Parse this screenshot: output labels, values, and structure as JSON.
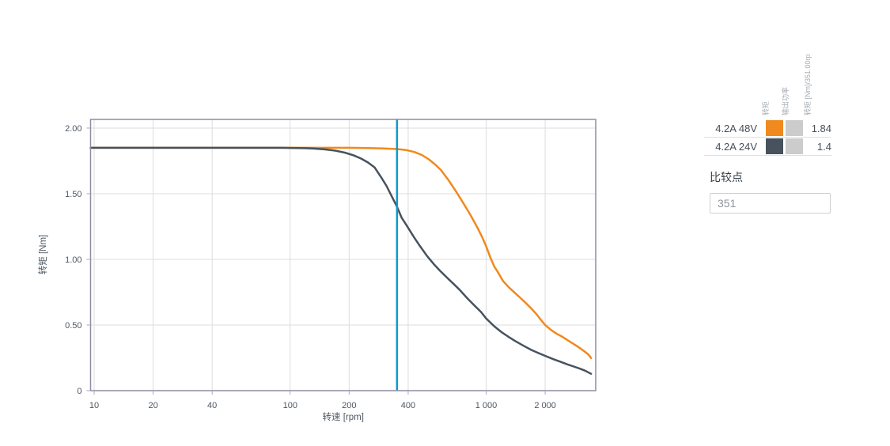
{
  "colors": {
    "grid": "#DDDDDD",
    "plot_border": "#8D8CA2",
    "tick": "#A9A8B8",
    "axis_text": "#4D5763",
    "comparison_line": "#0D9AC8"
  },
  "chart_data": {
    "type": "line",
    "x_scale": "log",
    "title": "",
    "xlabel": "转速 [rpm]",
    "ylabel": "转矩 [Nm]",
    "xlim": [
      9.59,
      3622
    ],
    "ylim": [
      0,
      2.066
    ],
    "grid": true,
    "x_ticks": [
      {
        "v": 10,
        "label": "10"
      },
      {
        "v": 20,
        "label": "20"
      },
      {
        "v": 40,
        "label": "40"
      },
      {
        "v": 100,
        "label": "100"
      },
      {
        "v": 200,
        "label": "200"
      },
      {
        "v": 400,
        "label": "400"
      },
      {
        "v": 1000,
        "label": "1 000"
      },
      {
        "v": 2000,
        "label": "2 000"
      }
    ],
    "y_ticks": [
      {
        "v": 0,
        "label": "0"
      },
      {
        "v": 0.5,
        "label": "0.50"
      },
      {
        "v": 1,
        "label": "1.00"
      },
      {
        "v": 1.5,
        "label": "1.50"
      },
      {
        "v": 2,
        "label": "2.00"
      }
    ],
    "comparison_line": {
      "x": 351,
      "color": "#0D9AC8"
    },
    "series": [
      {
        "name": "4.2A 48V",
        "color": "#F0891E",
        "points": [
          [
            9.6,
            1.85
          ],
          [
            15,
            1.85
          ],
          [
            25,
            1.85
          ],
          [
            40,
            1.85
          ],
          [
            60,
            1.85
          ],
          [
            90,
            1.85
          ],
          [
            120,
            1.85
          ],
          [
            160,
            1.85
          ],
          [
            200,
            1.85
          ],
          [
            250,
            1.848
          ],
          [
            300,
            1.845
          ],
          [
            351,
            1.84
          ],
          [
            390,
            1.833
          ],
          [
            430,
            1.818
          ],
          [
            470,
            1.795
          ],
          [
            510,
            1.762
          ],
          [
            550,
            1.722
          ],
          [
            590,
            1.678
          ],
          [
            640,
            1.607
          ],
          [
            700,
            1.52
          ],
          [
            760,
            1.435
          ],
          [
            830,
            1.34
          ],
          [
            900,
            1.245
          ],
          [
            950,
            1.175
          ],
          [
            1000,
            1.1
          ],
          [
            1050,
            1.015
          ],
          [
            1100,
            0.945
          ],
          [
            1150,
            0.9
          ],
          [
            1220,
            0.835
          ],
          [
            1300,
            0.79
          ],
          [
            1400,
            0.745
          ],
          [
            1500,
            0.705
          ],
          [
            1600,
            0.665
          ],
          [
            1700,
            0.625
          ],
          [
            1800,
            0.585
          ],
          [
            1900,
            0.54
          ],
          [
            2000,
            0.5
          ],
          [
            2150,
            0.46
          ],
          [
            2300,
            0.432
          ],
          [
            2450,
            0.41
          ],
          [
            2600,
            0.385
          ],
          [
            2750,
            0.362
          ],
          [
            2900,
            0.34
          ],
          [
            3050,
            0.318
          ],
          [
            3200,
            0.295
          ],
          [
            3300,
            0.278
          ],
          [
            3380,
            0.262
          ],
          [
            3430,
            0.248
          ]
        ]
      },
      {
        "name": "4.2A 24V",
        "color": "#47525E",
        "points": [
          [
            9.6,
            1.85
          ],
          [
            15,
            1.85
          ],
          [
            25,
            1.85
          ],
          [
            40,
            1.85
          ],
          [
            60,
            1.85
          ],
          [
            90,
            1.85
          ],
          [
            110,
            1.848
          ],
          [
            130,
            1.845
          ],
          [
            150,
            1.838
          ],
          [
            170,
            1.828
          ],
          [
            190,
            1.813
          ],
          [
            210,
            1.793
          ],
          [
            230,
            1.768
          ],
          [
            250,
            1.737
          ],
          [
            270,
            1.7
          ],
          [
            290,
            1.63
          ],
          [
            310,
            1.56
          ],
          [
            330,
            1.48
          ],
          [
            351,
            1.4
          ],
          [
            370,
            1.32
          ],
          [
            400,
            1.24
          ],
          [
            430,
            1.165
          ],
          [
            460,
            1.1
          ],
          [
            500,
            1.025
          ],
          [
            540,
            0.965
          ],
          [
            580,
            0.915
          ],
          [
            630,
            0.862
          ],
          [
            680,
            0.815
          ],
          [
            730,
            0.77
          ],
          [
            800,
            0.705
          ],
          [
            870,
            0.65
          ],
          [
            940,
            0.6
          ],
          [
            1000,
            0.55
          ],
          [
            1100,
            0.49
          ],
          [
            1200,
            0.445
          ],
          [
            1300,
            0.41
          ],
          [
            1400,
            0.38
          ],
          [
            1550,
            0.342
          ],
          [
            1700,
            0.31
          ],
          [
            1850,
            0.286
          ],
          [
            2000,
            0.265
          ],
          [
            2200,
            0.24
          ],
          [
            2400,
            0.219
          ],
          [
            2600,
            0.2
          ],
          [
            2800,
            0.184
          ],
          [
            3000,
            0.168
          ],
          [
            3200,
            0.152
          ],
          [
            3430,
            0.128
          ]
        ]
      }
    ]
  },
  "legend_panel": {
    "column_headers": [
      "转矩",
      "输出功率",
      "转矩 [Nm]/351.00rp"
    ],
    "rows": [
      {
        "label": "4.2A 48V",
        "torque_color": "#F0891E",
        "power_color": "#CCCCCC",
        "value": "1.84"
      },
      {
        "label": "4.2A 24V",
        "torque_color": "#47525E",
        "power_color": "#CCCCCC",
        "value": "1.4"
      }
    ],
    "comparison": {
      "label": "比较点",
      "input_value": "351"
    }
  }
}
